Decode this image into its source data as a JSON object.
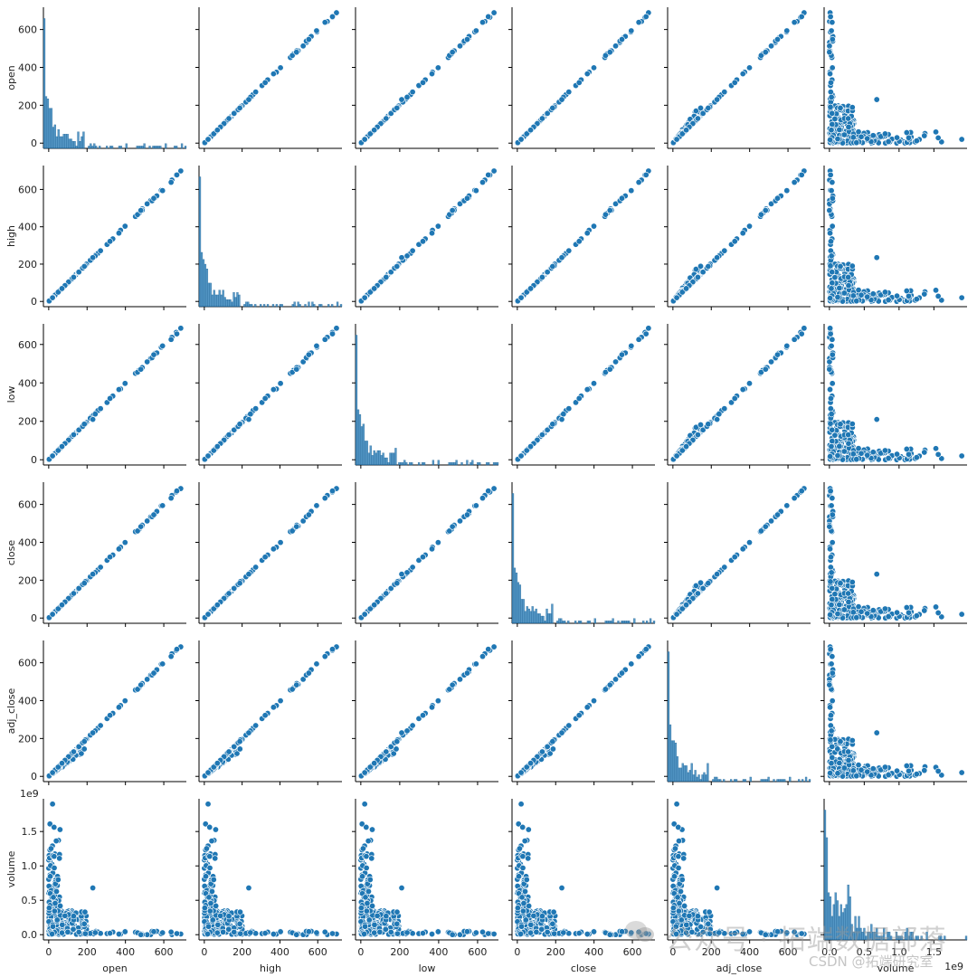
{
  "chart_data": {
    "type": "scatter",
    "subtype": "pairplot",
    "variables": [
      "open",
      "high",
      "low",
      "close",
      "adj_close",
      "volume"
    ],
    "color": "#1f77b4",
    "price_ticks": [
      0,
      200,
      400,
      600
    ],
    "price_ticks_low": [
      0,
      200,
      400,
      600
    ],
    "volume_ticks": [
      0.0,
      0.5,
      1.0,
      1.5
    ],
    "volume_tick_labels": [
      "0.0",
      "0.5",
      "1.0",
      "1.5"
    ],
    "volume_offset_label": "1e9",
    "ranges": {
      "open": [
        0,
        690
      ],
      "high": [
        0,
        700
      ],
      "low": [
        0,
        680
      ],
      "close": [
        0,
        690
      ],
      "adj_close": [
        0,
        690
      ],
      "volume": [
        0,
        1.9
      ]
    },
    "diagonal": "histogram",
    "off_diagonal": "scatter",
    "grid": false,
    "legend": "none"
  },
  "watermark": {
    "text": "公众号 · 拓端数据部落",
    "csdn": "CSDN @拓端研究室"
  }
}
